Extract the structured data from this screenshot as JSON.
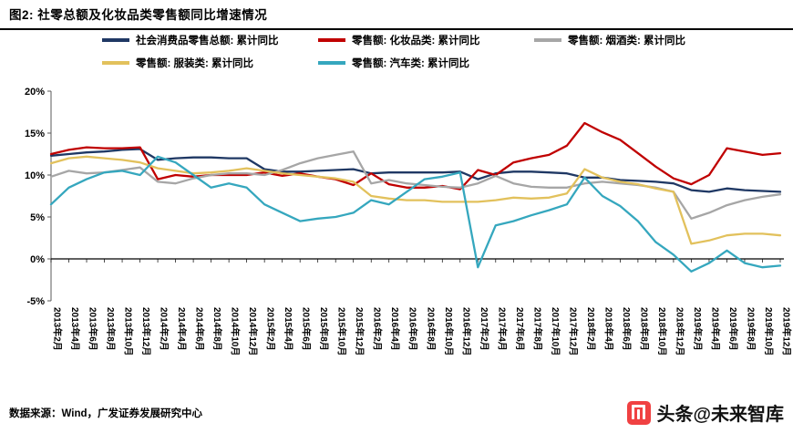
{
  "header": {
    "title": "图2: 社零总额及化妆品类零售额同比增速情况"
  },
  "footer": {
    "source": "数据来源：Wind，广发证券发展研究中心"
  },
  "watermark": {
    "text": "头条@未来智库",
    "logo_color": "#F04142"
  },
  "chart_data": {
    "type": "line",
    "title": "社零总额及化妆品类零售额同比增速情况",
    "ylim": [
      -5,
      20
    ],
    "yticks": [
      20,
      15,
      10,
      5,
      0,
      -5
    ],
    "ytick_labels": [
      "20%",
      "15%",
      "10%",
      "5%",
      "0%",
      "-5%"
    ],
    "grid": false,
    "legend_position": "top",
    "legend_rows": [
      [
        0,
        1,
        2
      ],
      [
        3,
        4
      ]
    ],
    "categories": [
      "2013年2月",
      "2013年4月",
      "2013年6月",
      "2013年8月",
      "2013年10月",
      "2013年12月",
      "2014年2月",
      "2014年4月",
      "2014年6月",
      "2014年8月",
      "2014年10月",
      "2014年12月",
      "2015年2月",
      "2015年4月",
      "2015年6月",
      "2015年8月",
      "2015年10月",
      "2015年12月",
      "2016年2月",
      "2016年4月",
      "2016年6月",
      "2016年8月",
      "2016年10月",
      "2016年12月",
      "2017年2月",
      "2017年4月",
      "2017年6月",
      "2017年8月",
      "2017年10月",
      "2017年12月",
      "2018年2月",
      "2018年4月",
      "2018年6月",
      "2018年8月",
      "2018年10月",
      "2018年12月",
      "2019年2月",
      "2019年4月",
      "2019年6月",
      "2019年8月",
      "2019年10月",
      "2019年12月"
    ],
    "series": [
      {
        "name": "社会消费品零售总额: 累计同比",
        "color": "#1F3864",
        "values": [
          12.3,
          12.5,
          12.7,
          12.8,
          13.0,
          13.1,
          11.8,
          12.0,
          12.1,
          12.1,
          12.0,
          12.0,
          10.7,
          10.4,
          10.4,
          10.5,
          10.6,
          10.7,
          10.2,
          10.3,
          10.3,
          10.3,
          10.3,
          10.4,
          9.5,
          10.2,
          10.4,
          10.4,
          10.3,
          10.2,
          9.7,
          9.7,
          9.4,
          9.3,
          9.2,
          9.0,
          8.2,
          8.0,
          8.4,
          8.2,
          8.1,
          8.0
        ]
      },
      {
        "name": "零售额: 化妆品类: 累计同比",
        "color": "#C00000",
        "values": [
          12.5,
          13.0,
          13.3,
          13.2,
          13.2,
          13.3,
          9.5,
          10.0,
          9.8,
          10.0,
          10.0,
          10.0,
          10.3,
          9.9,
          10.2,
          9.8,
          9.5,
          8.8,
          10.2,
          8.9,
          8.5,
          8.5,
          8.7,
          8.3,
          10.6,
          10.0,
          11.5,
          12.0,
          12.4,
          13.5,
          16.2,
          15.1,
          14.2,
          12.6,
          11.0,
          9.6,
          8.9,
          10.0,
          13.2,
          12.8,
          12.4,
          12.6
        ]
      },
      {
        "name": "零售额: 烟酒类: 累计同比",
        "color": "#A6A6A6",
        "values": [
          9.8,
          10.5,
          10.2,
          10.3,
          10.6,
          10.9,
          9.2,
          9.0,
          9.6,
          10.0,
          10.2,
          10.2,
          10.0,
          10.6,
          11.4,
          12.0,
          12.4,
          12.8,
          9.0,
          9.4,
          9.0,
          8.8,
          8.6,
          8.5,
          9.0,
          9.9,
          9.0,
          8.6,
          8.5,
          8.5,
          9.0,
          9.2,
          9.0,
          8.8,
          8.5,
          8.0,
          4.8,
          5.5,
          6.4,
          7.0,
          7.4,
          7.7
        ]
      },
      {
        "name": "零售额: 服装类: 累计同比",
        "color": "#E2C15C",
        "values": [
          11.4,
          12.0,
          12.2,
          12.0,
          11.8,
          11.5,
          10.8,
          10.5,
          10.2,
          10.3,
          10.5,
          10.8,
          10.5,
          10.2,
          10.0,
          9.8,
          9.6,
          9.2,
          7.5,
          7.2,
          7.0,
          7.0,
          6.8,
          6.8,
          6.8,
          7.0,
          7.3,
          7.2,
          7.3,
          7.8,
          10.7,
          9.7,
          9.2,
          8.9,
          8.4,
          8.0,
          1.8,
          2.2,
          2.8,
          3.0,
          3.0,
          2.8
        ]
      },
      {
        "name": "零售额: 汽车类: 累计同比",
        "color": "#35A7BE",
        "values": [
          6.5,
          8.5,
          9.5,
          10.3,
          10.5,
          10.0,
          12.2,
          11.5,
          10.0,
          8.5,
          9.0,
          8.5,
          6.5,
          5.5,
          4.5,
          4.8,
          5.0,
          5.5,
          7.0,
          6.5,
          8.0,
          9.5,
          9.8,
          10.3,
          -1.0,
          4.0,
          4.5,
          5.2,
          5.8,
          6.5,
          9.7,
          7.5,
          6.3,
          4.5,
          2.0,
          0.5,
          -1.5,
          -0.5,
          1.0,
          -0.5,
          -1.0,
          -0.8
        ]
      }
    ]
  }
}
